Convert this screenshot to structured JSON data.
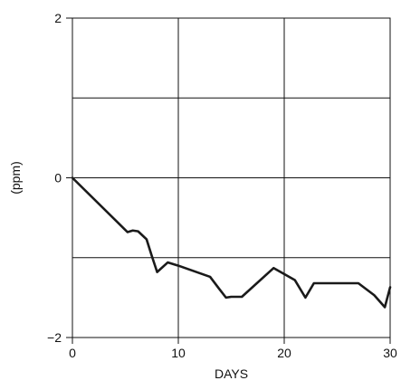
{
  "chart_data": {
    "type": "line",
    "title": "",
    "xlabel": "DAYS",
    "ylabel": "(ppm)",
    "xlim": [
      0,
      30
    ],
    "ylim": [
      -2,
      2
    ],
    "x_ticks": [
      0,
      10,
      20,
      30
    ],
    "y_ticks": [
      -2,
      0,
      2
    ],
    "x_tick_labels": [
      "0",
      "10",
      "20",
      "30"
    ],
    "y_tick_labels": [
      "−2",
      "0",
      "2"
    ],
    "grid": true,
    "grid_x": [
      10,
      20
    ],
    "grid_y": [
      -1,
      0,
      1
    ],
    "series": [
      {
        "color": "#1a1a1a",
        "x": [
          0,
          5.2,
          5.7,
          6.2,
          7.0,
          7.5,
          8.0,
          9.0,
          10.0,
          13.0,
          13.8,
          14.5,
          15.0,
          16.0,
          19.0,
          21.0,
          22.0,
          22.8,
          25.0,
          27.0,
          28.5,
          29.5,
          30.0
        ],
        "y": [
          0,
          -0.68,
          -0.66,
          -0.67,
          -0.77,
          -0.98,
          -1.18,
          -1.06,
          -1.1,
          -1.24,
          -1.38,
          -1.5,
          -1.49,
          -1.49,
          -1.13,
          -1.28,
          -1.5,
          -1.32,
          -1.32,
          -1.32,
          -1.47,
          -1.62,
          -1.37
        ]
      }
    ]
  }
}
